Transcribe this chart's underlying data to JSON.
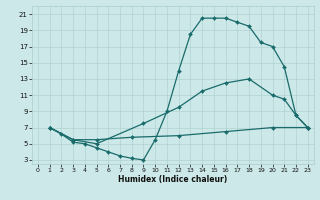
{
  "xlabel": "Humidex (Indice chaleur)",
  "bg_color": "#cce8e8",
  "line_color": "#1a6b6b",
  "xlim": [
    -0.5,
    23.5
  ],
  "ylim": [
    2.5,
    22
  ],
  "xticks": [
    0,
    1,
    2,
    3,
    4,
    5,
    6,
    7,
    8,
    9,
    10,
    11,
    12,
    13,
    14,
    15,
    16,
    17,
    18,
    19,
    20,
    21,
    22,
    23
  ],
  "yticks": [
    3,
    5,
    7,
    9,
    11,
    13,
    15,
    17,
    19,
    21
  ],
  "lines": [
    {
      "x": [
        1,
        2,
        3,
        4,
        5,
        6,
        7,
        8,
        9,
        10,
        11,
        12,
        13,
        14,
        15,
        16,
        17,
        18,
        19,
        20,
        21,
        22,
        23
      ],
      "y": [
        7,
        6.2,
        5.2,
        5.0,
        4.5,
        4.0,
        3.5,
        3.2,
        3.0,
        5.5,
        9.0,
        14.0,
        18.5,
        20.5,
        20.5,
        20.5,
        20.0,
        19.5,
        17.5,
        17.0,
        14.5,
        8.5,
        7.0
      ]
    },
    {
      "x": [
        1,
        3,
        5,
        9,
        12,
        14,
        16,
        18,
        20,
        21,
        22,
        23
      ],
      "y": [
        7,
        5.5,
        5.0,
        7.5,
        9.5,
        11.5,
        12.5,
        13.0,
        11.0,
        10.5,
        8.5,
        7.0
      ]
    },
    {
      "x": [
        1,
        3,
        5,
        8,
        12,
        16,
        20,
        23
      ],
      "y": [
        7,
        5.5,
        5.5,
        5.8,
        6.0,
        6.5,
        7.0,
        7.0
      ]
    }
  ]
}
